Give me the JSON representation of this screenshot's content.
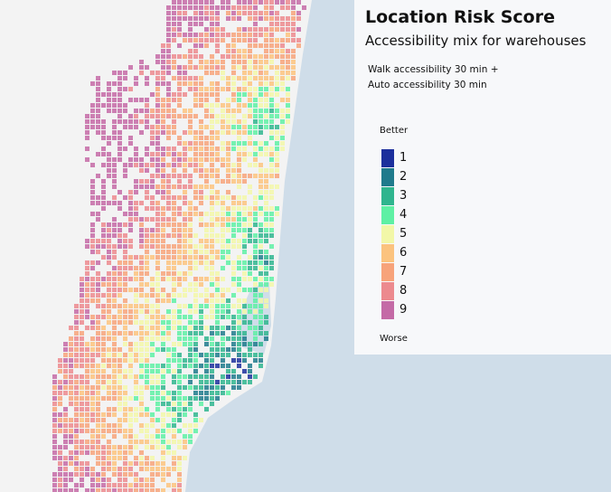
{
  "header": {
    "title": "Location Risk Score",
    "subtitle": "Accessibility mix for warehouses"
  },
  "description": [
    "Walk accessibility 30 min +",
    "Auto accessibility 30 min"
  ],
  "legend": {
    "top_label": "Better",
    "bottom_label": "Worse",
    "items": [
      {
        "label": "1",
        "color": "#1c2f9c"
      },
      {
        "label": "2",
        "color": "#1f7a8c"
      },
      {
        "label": "3",
        "color": "#2fb58e"
      },
      {
        "label": "4",
        "color": "#5ef0a4"
      },
      {
        "label": "5",
        "color": "#f2f7a8"
      },
      {
        "label": "6",
        "color": "#fbc37e"
      },
      {
        "label": "7",
        "color": "#f7a37a"
      },
      {
        "label": "8",
        "color": "#ec8a8e"
      },
      {
        "label": "9",
        "color": "#c46aa6"
      }
    ]
  }
}
